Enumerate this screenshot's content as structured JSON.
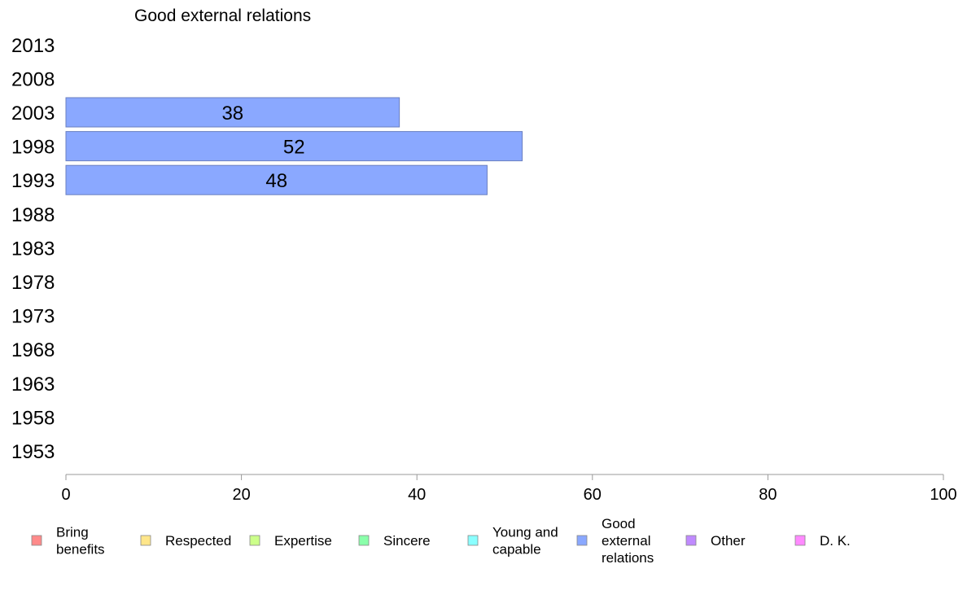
{
  "chart_data": {
    "type": "bar",
    "orientation": "horizontal",
    "title": "Good external relations",
    "categories": [
      "2013",
      "2008",
      "2003",
      "1998",
      "1993",
      "1988",
      "1983",
      "1978",
      "1973",
      "1968",
      "1963",
      "1958",
      "1953"
    ],
    "series": [
      {
        "name": "Good external relations",
        "color": "#8aa8ff",
        "values": [
          null,
          null,
          38,
          52,
          48,
          null,
          null,
          null,
          null,
          null,
          null,
          null,
          null
        ]
      }
    ],
    "xlim": [
      0,
      100
    ],
    "xticks": [
      "0",
      "20",
      "40",
      "60",
      "80",
      "100"
    ],
    "grid": false,
    "legend_position": "bottom",
    "legend": [
      {
        "label": [
          "Bring",
          "benefits"
        ],
        "color": "#ff8a8a"
      },
      {
        "label": [
          "Respected"
        ],
        "color": "#ffe68a"
      },
      {
        "label": [
          "Expertise"
        ],
        "color": "#ccff8a"
      },
      {
        "label": [
          "Sincere"
        ],
        "color": "#8affaa"
      },
      {
        "label": [
          "Young and",
          "capable"
        ],
        "color": "#8affff"
      },
      {
        "label": [
          "Good",
          "external",
          "relations"
        ],
        "color": "#8aa8ff"
      },
      {
        "label": [
          "Other"
        ],
        "color": "#c08aff"
      },
      {
        "label": [
          "D. K."
        ],
        "color": "#ff8aff"
      }
    ]
  }
}
